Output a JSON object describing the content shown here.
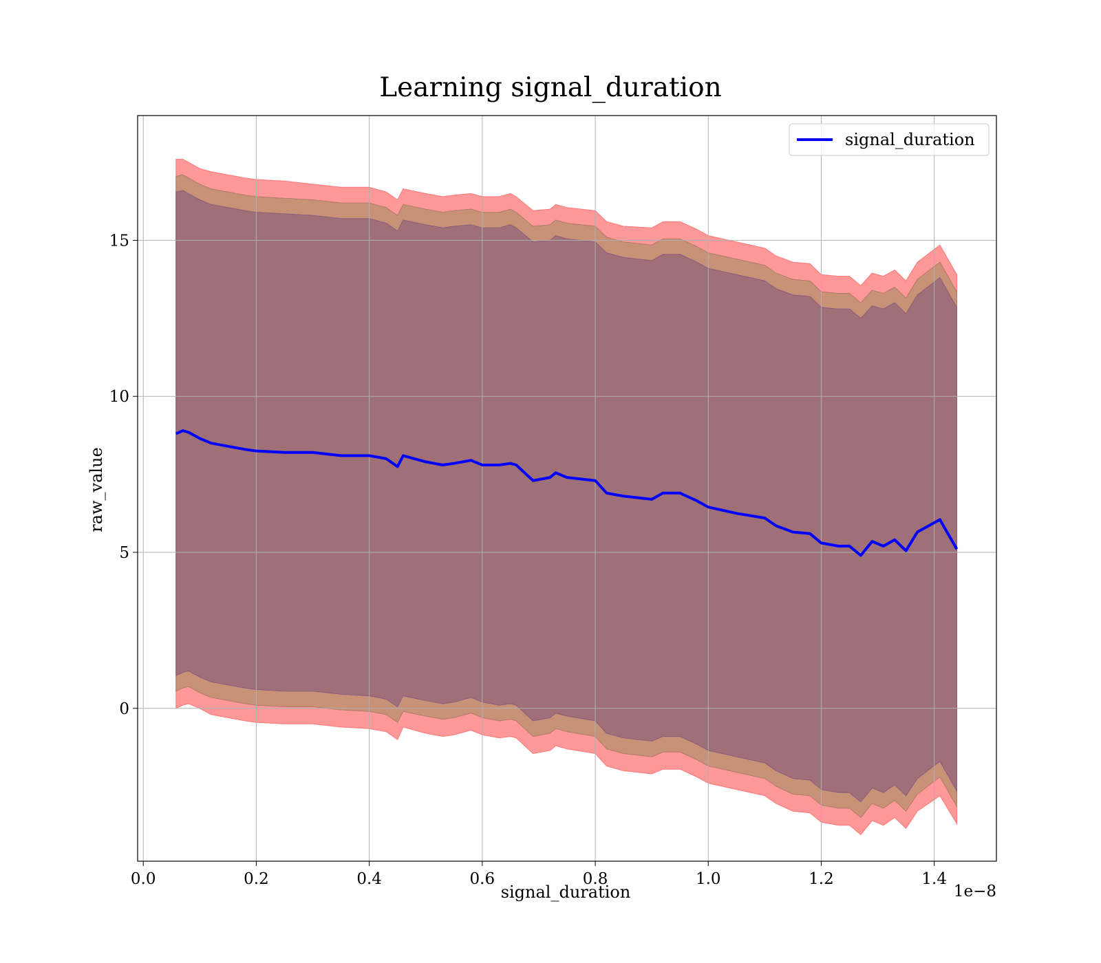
{
  "chart_data": {
    "type": "line",
    "title": "Learning signal_duration",
    "xlabel": "signal_duration",
    "ylabel": "raw_value",
    "x_offset_text": "1e−8",
    "x_tick_labels": [
      "0.0",
      "0.2",
      "0.4",
      "0.6",
      "0.8",
      "1.0",
      "1.2",
      "1.4"
    ],
    "x_ticks": [
      0.0,
      0.2,
      0.4,
      0.6,
      0.8,
      1.0,
      1.2,
      1.4
    ],
    "y_tick_labels": [
      "0",
      "5",
      "10",
      "15"
    ],
    "y_ticks": [
      0,
      5,
      10,
      15
    ],
    "xlim": [
      -0.01,
      1.51
    ],
    "ylim": [
      -4.9,
      19.0
    ],
    "grid": true,
    "legend_position": "top-right",
    "colors": {
      "line": "#0000ff",
      "band_outer": "#ff9999",
      "band_middle": "#c89277",
      "band_inner": "#a07078"
    },
    "series": [
      {
        "name": "signal_duration",
        "x": [
          0.058,
          0.07,
          0.08,
          0.1,
          0.12,
          0.15,
          0.18,
          0.2,
          0.25,
          0.3,
          0.35,
          0.4,
          0.43,
          0.45,
          0.46,
          0.5,
          0.53,
          0.55,
          0.58,
          0.6,
          0.63,
          0.65,
          0.66,
          0.69,
          0.72,
          0.73,
          0.75,
          0.8,
          0.82,
          0.85,
          0.9,
          0.92,
          0.95,
          0.98,
          1.0,
          1.05,
          1.1,
          1.12,
          1.15,
          1.18,
          1.2,
          1.23,
          1.25,
          1.27,
          1.29,
          1.31,
          1.33,
          1.35,
          1.37,
          1.41,
          1.44
        ],
        "y": [
          8.8,
          8.9,
          8.85,
          8.65,
          8.5,
          8.4,
          8.3,
          8.25,
          8.2,
          8.2,
          8.1,
          8.1,
          8.0,
          7.75,
          8.1,
          7.9,
          7.8,
          7.85,
          7.95,
          7.8,
          7.8,
          7.85,
          7.8,
          7.3,
          7.4,
          7.55,
          7.4,
          7.3,
          6.9,
          6.8,
          6.7,
          6.9,
          6.9,
          6.65,
          6.45,
          6.25,
          6.1,
          5.85,
          5.65,
          5.6,
          5.3,
          5.2,
          5.2,
          4.9,
          5.35,
          5.2,
          5.4,
          5.05,
          5.65,
          6.05,
          5.1
        ],
        "band_outer_upper": [
          17.6,
          17.6,
          17.5,
          17.3,
          17.2,
          17.1,
          17.0,
          16.95,
          16.9,
          16.8,
          16.7,
          16.7,
          16.55,
          16.3,
          16.65,
          16.5,
          16.4,
          16.45,
          16.5,
          16.4,
          16.4,
          16.5,
          16.4,
          15.95,
          16.0,
          16.15,
          16.05,
          15.95,
          15.6,
          15.45,
          15.4,
          15.6,
          15.6,
          15.35,
          15.15,
          14.95,
          14.75,
          14.5,
          14.3,
          14.25,
          13.9,
          13.85,
          13.85,
          13.55,
          13.95,
          13.85,
          14.05,
          13.7,
          14.3,
          14.85,
          13.9
        ],
        "band_outer_lower": [
          0.0,
          0.1,
          0.15,
          0.0,
          -0.2,
          -0.3,
          -0.4,
          -0.45,
          -0.5,
          -0.5,
          -0.6,
          -0.65,
          -0.75,
          -1.0,
          -0.6,
          -0.8,
          -0.9,
          -0.85,
          -0.7,
          -0.85,
          -0.95,
          -0.9,
          -0.95,
          -1.45,
          -1.35,
          -1.2,
          -1.3,
          -1.45,
          -1.85,
          -2.0,
          -2.1,
          -1.95,
          -1.95,
          -2.2,
          -2.4,
          -2.6,
          -2.8,
          -3.05,
          -3.3,
          -3.35,
          -3.65,
          -3.75,
          -3.75,
          -4.05,
          -3.6,
          -3.75,
          -3.5,
          -3.85,
          -3.3,
          -2.8,
          -3.7
        ],
        "band_middle_upper": [
          17.05,
          17.1,
          17.0,
          16.8,
          16.65,
          16.55,
          16.45,
          16.4,
          16.35,
          16.3,
          16.2,
          16.2,
          16.05,
          15.8,
          16.15,
          16.0,
          15.9,
          15.95,
          16.0,
          15.9,
          15.9,
          16.0,
          15.9,
          15.45,
          15.5,
          15.65,
          15.55,
          15.45,
          15.1,
          14.95,
          14.85,
          15.05,
          15.05,
          14.8,
          14.6,
          14.4,
          14.2,
          13.95,
          13.75,
          13.7,
          13.35,
          13.3,
          13.3,
          13.0,
          13.4,
          13.3,
          13.5,
          13.15,
          13.75,
          14.3,
          13.35
        ],
        "band_middle_lower": [
          0.55,
          0.65,
          0.7,
          0.5,
          0.35,
          0.25,
          0.15,
          0.1,
          0.05,
          0.05,
          -0.05,
          -0.1,
          -0.2,
          -0.45,
          -0.1,
          -0.25,
          -0.35,
          -0.3,
          -0.15,
          -0.3,
          -0.4,
          -0.35,
          -0.4,
          -0.9,
          -0.8,
          -0.65,
          -0.75,
          -0.9,
          -1.3,
          -1.45,
          -1.55,
          -1.4,
          -1.4,
          -1.65,
          -1.85,
          -2.05,
          -2.25,
          -2.5,
          -2.75,
          -2.8,
          -3.1,
          -3.2,
          -3.2,
          -3.5,
          -3.05,
          -3.2,
          -2.95,
          -3.3,
          -2.75,
          -2.2,
          -3.15
        ],
        "band_inner_upper": [
          16.55,
          16.6,
          16.5,
          16.3,
          16.15,
          16.05,
          15.95,
          15.9,
          15.85,
          15.8,
          15.7,
          15.7,
          15.55,
          15.3,
          15.65,
          15.5,
          15.4,
          15.45,
          15.5,
          15.4,
          15.4,
          15.5,
          15.4,
          14.95,
          15.0,
          15.15,
          15.05,
          14.95,
          14.6,
          14.45,
          14.35,
          14.55,
          14.55,
          14.3,
          14.1,
          13.9,
          13.7,
          13.45,
          13.25,
          13.2,
          12.85,
          12.8,
          12.8,
          12.5,
          12.9,
          12.8,
          13.0,
          12.65,
          13.25,
          13.8,
          12.85
        ],
        "band_inner_lower": [
          1.05,
          1.15,
          1.2,
          1.0,
          0.85,
          0.75,
          0.65,
          0.6,
          0.55,
          0.55,
          0.45,
          0.4,
          0.3,
          0.05,
          0.4,
          0.25,
          0.15,
          0.2,
          0.35,
          0.2,
          0.1,
          0.15,
          0.1,
          -0.4,
          -0.3,
          -0.15,
          -0.25,
          -0.4,
          -0.8,
          -0.95,
          -1.05,
          -0.9,
          -0.9,
          -1.15,
          -1.35,
          -1.55,
          -1.75,
          -2.0,
          -2.25,
          -2.3,
          -2.6,
          -2.7,
          -2.7,
          -3.0,
          -2.55,
          -2.7,
          -2.45,
          -2.8,
          -2.25,
          -1.7,
          -2.65
        ]
      }
    ]
  }
}
